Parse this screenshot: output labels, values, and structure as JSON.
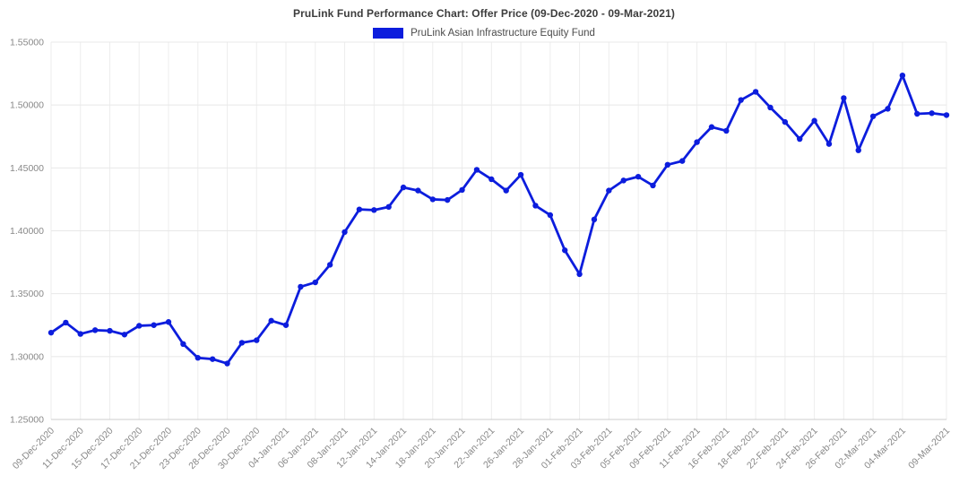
{
  "header": {
    "title": "PruLink Fund Performance Chart: Offer Price (09-Dec-2020 - 09-Mar-2021)"
  },
  "legend": {
    "label": "PruLink Asian Infrastructure Equity Fund",
    "swatch_color": "#0c1ddd"
  },
  "colors": {
    "line": "#0c1ddd",
    "h_grid": "#e8e8e8",
    "v_grid": "#ededed",
    "axis": "#cccccc",
    "tick_text": "#888888"
  },
  "chart_data": {
    "type": "line",
    "title": "PruLink Fund Performance Chart: Offer Price (09-Dec-2020 - 09-Mar-2021)",
    "xlabel": "",
    "ylabel": "",
    "ylim": [
      1.25,
      1.55
    ],
    "y_tick_step": 0.05,
    "grid": true,
    "legend_position": "top",
    "y_tick_labels": [
      "1.25000",
      "1.30000",
      "1.35000",
      "1.40000",
      "1.45000",
      "1.50000",
      "1.55000"
    ],
    "x_tick_labels": [
      "09-Dec-2020",
      "11-Dec-2020",
      "15-Dec-2020",
      "17-Dec-2020",
      "21-Dec-2020",
      "23-Dec-2020",
      "28-Dec-2020",
      "30-Dec-2020",
      "04-Jan-2021",
      "06-Jan-2021",
      "08-Jan-2021",
      "12-Jan-2021",
      "14-Jan-2021",
      "18-Jan-2021",
      "20-Jan-2021",
      "22-Jan-2021",
      "26-Jan-2021",
      "28-Jan-2021",
      "01-Feb-2021",
      "03-Feb-2021",
      "05-Feb-2021",
      "09-Feb-2021",
      "11-Feb-2021",
      "16-Feb-2021",
      "18-Feb-2021",
      "22-Feb-2021",
      "24-Feb-2021",
      "26-Feb-2021",
      "02-Mar-2021",
      "04-Mar-2021",
      "09-Mar-2021"
    ],
    "x_tick_indices": [
      0,
      2,
      4,
      6,
      8,
      10,
      12,
      14,
      16,
      18,
      20,
      22,
      24,
      26,
      28,
      30,
      32,
      34,
      36,
      38,
      40,
      42,
      44,
      46,
      48,
      50,
      52,
      54,
      56,
      58,
      61
    ],
    "x": [
      "09-Dec-2020",
      "10-Dec-2020",
      "11-Dec-2020",
      "14-Dec-2020",
      "15-Dec-2020",
      "16-Dec-2020",
      "17-Dec-2020",
      "18-Dec-2020",
      "21-Dec-2020",
      "22-Dec-2020",
      "23-Dec-2020",
      "24-Dec-2020",
      "28-Dec-2020",
      "29-Dec-2020",
      "30-Dec-2020",
      "31-Dec-2020",
      "04-Jan-2021",
      "05-Jan-2021",
      "06-Jan-2021",
      "07-Jan-2021",
      "08-Jan-2021",
      "11-Jan-2021",
      "12-Jan-2021",
      "13-Jan-2021",
      "14-Jan-2021",
      "15-Jan-2021",
      "18-Jan-2021",
      "19-Jan-2021",
      "20-Jan-2021",
      "21-Jan-2021",
      "22-Jan-2021",
      "25-Jan-2021",
      "26-Jan-2021",
      "27-Jan-2021",
      "28-Jan-2021",
      "29-Jan-2021",
      "01-Feb-2021",
      "02-Feb-2021",
      "03-Feb-2021",
      "04-Feb-2021",
      "05-Feb-2021",
      "08-Feb-2021",
      "09-Feb-2021",
      "10-Feb-2021",
      "11-Feb-2021",
      "12-Feb-2021",
      "16-Feb-2021",
      "17-Feb-2021",
      "18-Feb-2021",
      "19-Feb-2021",
      "22-Feb-2021",
      "23-Feb-2021",
      "24-Feb-2021",
      "25-Feb-2021",
      "26-Feb-2021",
      "01-Mar-2021",
      "02-Mar-2021",
      "03-Mar-2021",
      "04-Mar-2021",
      "05-Mar-2021",
      "08-Mar-2021",
      "09-Mar-2021"
    ],
    "series": [
      {
        "name": "PruLink Asian Infrastructure Equity Fund",
        "color": "#0c1ddd",
        "values": [
          1.319,
          1.327,
          1.318,
          1.321,
          1.3205,
          1.3175,
          1.3245,
          1.325,
          1.3275,
          1.31,
          1.299,
          1.298,
          1.2945,
          1.311,
          1.313,
          1.3285,
          1.325,
          1.3555,
          1.359,
          1.373,
          1.399,
          1.417,
          1.4165,
          1.419,
          1.4345,
          1.432,
          1.425,
          1.4245,
          1.4325,
          1.4485,
          1.441,
          1.432,
          1.4445,
          1.42,
          1.4125,
          1.3845,
          1.3655,
          1.409,
          1.432,
          1.44,
          1.443,
          1.436,
          1.4525,
          1.4555,
          1.4705,
          1.4825,
          1.4795,
          1.504,
          1.5105,
          1.498,
          1.4865,
          1.473,
          1.4875,
          1.469,
          1.5055,
          1.464,
          1.491,
          1.497,
          1.5235,
          1.493,
          1.4935,
          1.492
        ]
      }
    ]
  }
}
